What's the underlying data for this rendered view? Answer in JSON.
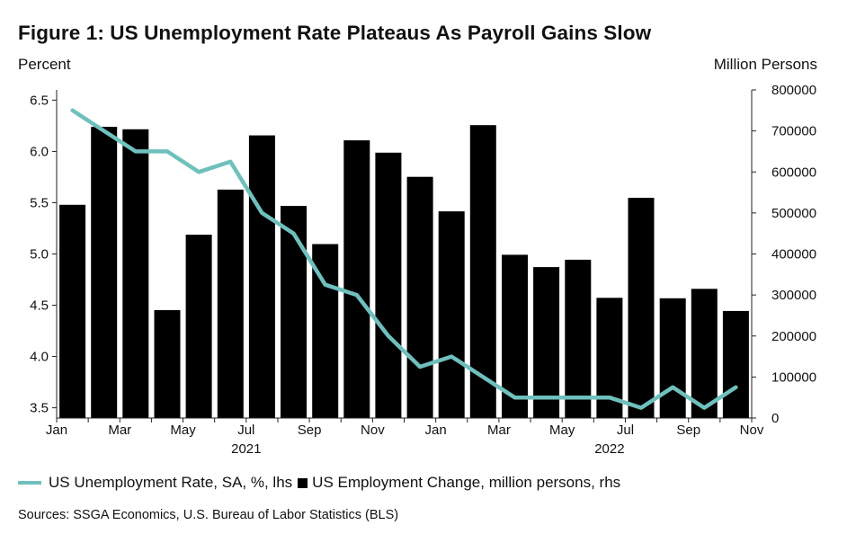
{
  "title": "Figure 1: US Unemployment Rate Plateaus As Payroll Gains Slow",
  "left_axis_unit": "Percent",
  "right_axis_unit": "Million Persons",
  "legend": {
    "line_label": "US Unemployment Rate, SA, %, lhs",
    "bar_label": "US Employment Change, million persons, rhs"
  },
  "source": "Sources: SSGA Economics, U.S. Bureau of Labor Statistics (BLS)",
  "colors": {
    "line": "#6fc0bd",
    "bars": "#000000"
  },
  "chart_data": {
    "type": "bar+line",
    "months": [
      "2021-01",
      "2021-02",
      "2021-03",
      "2021-04",
      "2021-05",
      "2021-06",
      "2021-07",
      "2021-08",
      "2021-09",
      "2021-10",
      "2021-11",
      "2021-12",
      "2022-01",
      "2022-02",
      "2022-03",
      "2022-04",
      "2022-05",
      "2022-06",
      "2022-07",
      "2022-08",
      "2022-09",
      "2022-10"
    ],
    "x_tick_labels": [
      "Jan",
      "Mar",
      "May",
      "Jul",
      "Sep",
      "Nov",
      "Jan",
      "Mar",
      "May",
      "Jul",
      "Sep",
      "Nov"
    ],
    "year_labels": [
      "2021",
      "2022"
    ],
    "series": [
      {
        "name": "US Unemployment Rate, SA, %, lhs",
        "type": "line",
        "axis": "left",
        "values": [
          6.4,
          6.2,
          6.0,
          6.0,
          5.8,
          5.9,
          5.4,
          5.2,
          4.7,
          4.6,
          4.2,
          3.9,
          4.0,
          3.8,
          3.6,
          3.6,
          3.6,
          3.6,
          3.5,
          3.7,
          3.5,
          3.7
        ]
      },
      {
        "name": "US Employment Change, million persons, rhs",
        "type": "bar",
        "axis": "right",
        "values": [
          520000,
          710000,
          704000,
          263000,
          447000,
          557000,
          689000,
          517000,
          424000,
          677000,
          647000,
          588000,
          504000,
          714000,
          398000,
          368000,
          386000,
          293000,
          537000,
          292000,
          315000,
          261000
        ]
      }
    ],
    "y_left": {
      "min": 3.4,
      "max": 6.6,
      "ticks": [
        3.5,
        4.0,
        4.5,
        5.0,
        5.5,
        6.0,
        6.5
      ],
      "tick_labels": [
        "3.5",
        "4.0",
        "4.5",
        "5.0",
        "5.5",
        "6.0",
        "6.5"
      ]
    },
    "y_right": {
      "min": 0,
      "max": 800000,
      "ticks": [
        0,
        100000,
        200000,
        300000,
        400000,
        500000,
        600000,
        700000,
        800000
      ],
      "tick_labels": [
        "0",
        "100000",
        "200000",
        "300000",
        "400000",
        "500000",
        "600000",
        "700000",
        "800000"
      ]
    },
    "grid": false,
    "legend_position": "bottom"
  }
}
